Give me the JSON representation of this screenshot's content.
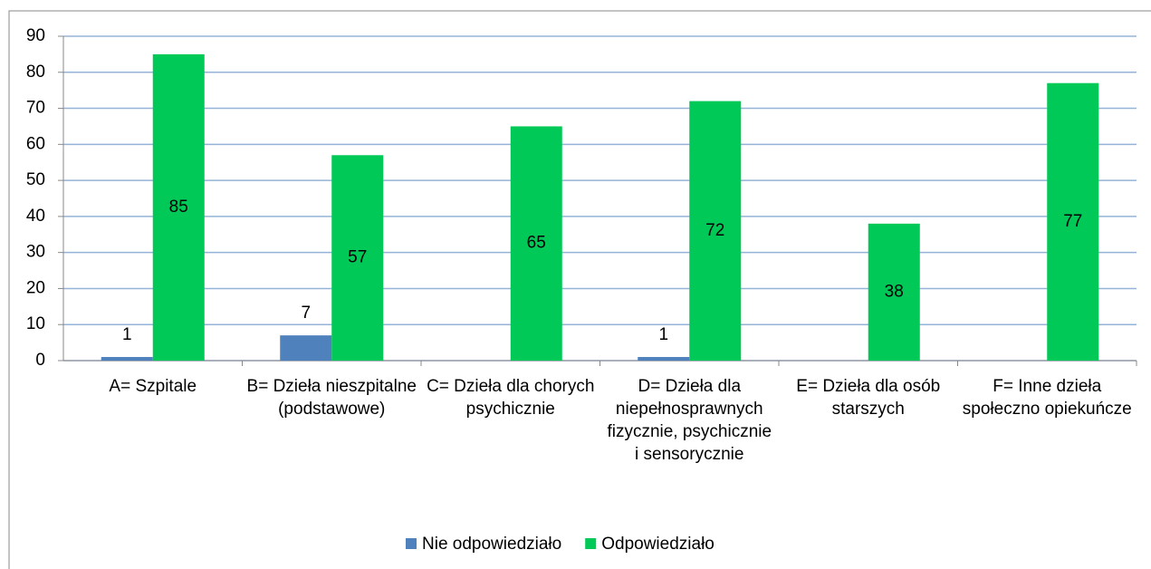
{
  "chart_data": {
    "type": "bar",
    "categories": [
      "A= Szpitale",
      "B= Dzieła nieszpitalne (podstawowe)",
      "C= Dzieła dla chorych psychicznie",
      "D= Dzieła dla niepełnosprawnych fizycznie, psychicznie i sensorycznie",
      "E= Dzieła dla osób starszych",
      "F= Inne dzieła społeczno opiekuńcze"
    ],
    "series": [
      {
        "name": "Nie odpowiedziało",
        "color": "#4f81bd",
        "values": [
          1,
          7,
          null,
          1,
          null,
          null
        ]
      },
      {
        "name": "Odpowiedziało",
        "color": "#00c957",
        "values": [
          85,
          57,
          65,
          72,
          38,
          77
        ]
      }
    ],
    "ylim": [
      0,
      90
    ],
    "yticks": [
      0,
      10,
      20,
      30,
      40,
      50,
      60,
      70,
      80,
      90
    ],
    "grid": true,
    "legend": "bottom"
  }
}
